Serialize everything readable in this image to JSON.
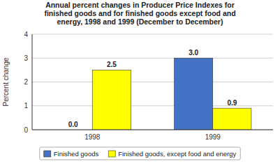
{
  "chart_data": {
    "type": "bar",
    "title": "Annual percent changes in Producer Price Indexes for\nfinished goods and for finished goods except food and\nenergy, 1998 and 1999 (December to December)",
    "categories": [
      "1998",
      "1999"
    ],
    "series": [
      {
        "name": "Finished goods",
        "color": "#4472C4",
        "values": [
          0.0,
          3.0
        ],
        "value_labels": [
          "0.0",
          "3.0"
        ]
      },
      {
        "name": "Finished goods, except food and energy",
        "color": "#FFFF00",
        "values": [
          2.5,
          0.9
        ],
        "value_labels": [
          "2.5",
          "0.9"
        ]
      }
    ],
    "ylabel": "Percent change",
    "ylim": [
      0.0,
      4.0
    ],
    "yticks": [
      0,
      1,
      2,
      3,
      4
    ],
    "grid": true,
    "legend": "bottom",
    "data_labels": true
  }
}
